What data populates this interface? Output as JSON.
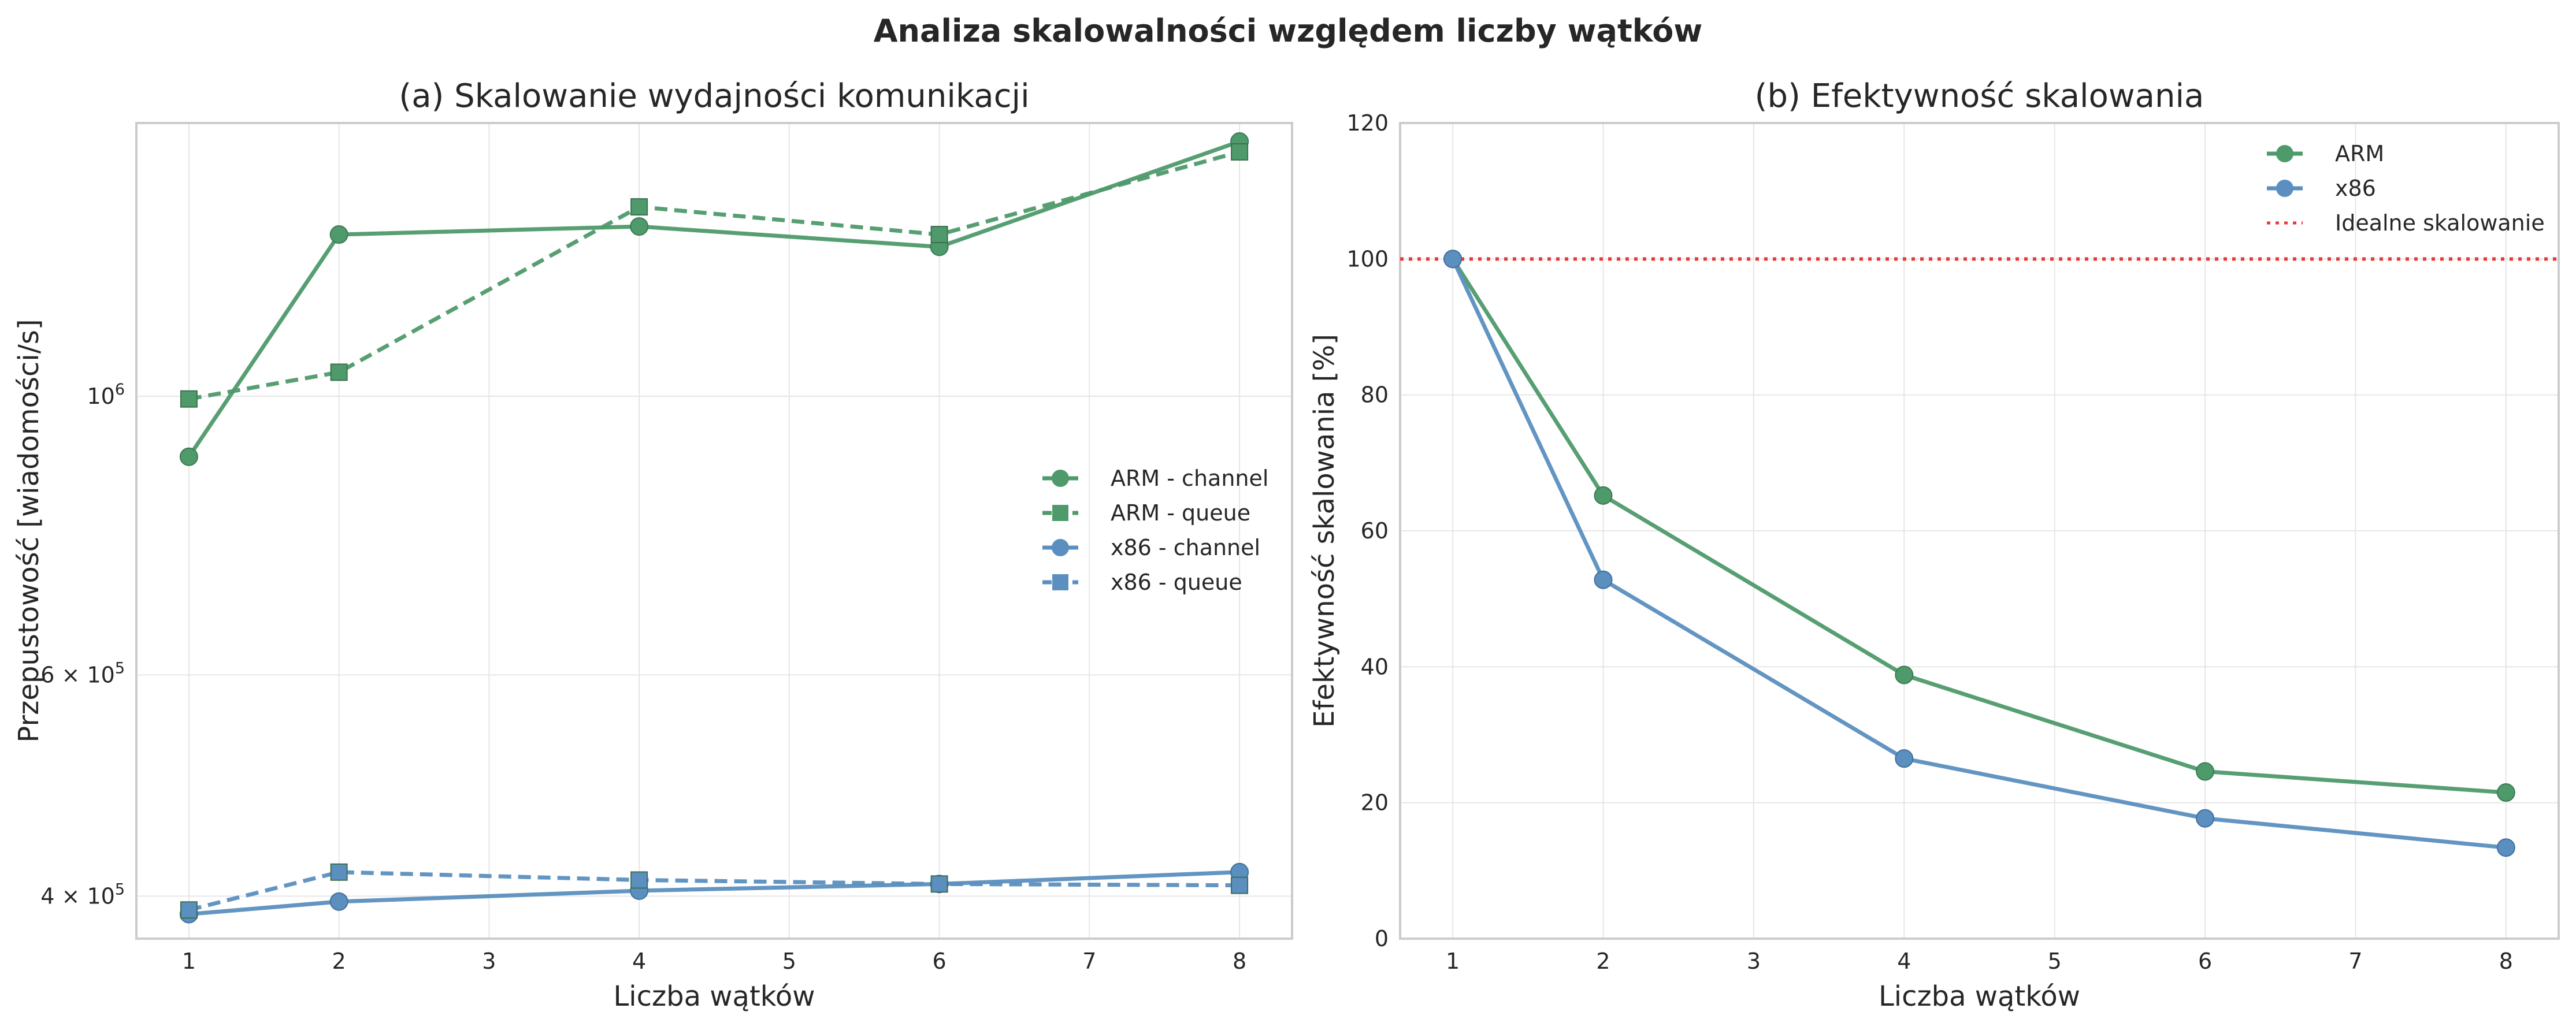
{
  "figure": {
    "title": "Analiza skalowalności względem liczby wątków"
  },
  "chart_data": [
    {
      "type": "line",
      "title": "(a) Skalowanie wydajności komunikacji",
      "xlabel": "Liczba wątków",
      "ylabel": "Przepustowość [wiadomości/s]",
      "yscale": "log",
      "xlim": [
        0.65,
        8.35
      ],
      "ylim": [
        370000,
        1650000
      ],
      "x_ticks": [
        1,
        2,
        3,
        4,
        5,
        6,
        7,
        8
      ],
      "y_ticks": [
        {
          "value": 400000,
          "label": "4 × 10",
          "exp": "5"
        },
        {
          "value": 600000,
          "label": "6 × 10",
          "exp": "5"
        },
        {
          "value": 1000000,
          "label": "10",
          "exp": "6"
        }
      ],
      "grid": true,
      "legend_position": "center-right",
      "x": [
        1,
        2,
        4,
        6,
        8
      ],
      "series": [
        {
          "name": "ARM - channel",
          "color": "#4e9a6b",
          "dash": "solid",
          "marker": "circle",
          "values": [
            895000,
            1345000,
            1365000,
            1315000,
            1595000
          ]
        },
        {
          "name": "ARM - queue",
          "color": "#4e9a6b",
          "dash": "dashed",
          "marker": "square",
          "values": [
            995000,
            1045000,
            1415000,
            1345000,
            1565000
          ]
        },
        {
          "name": "x86 - channel",
          "color": "#5b8fbf",
          "dash": "solid",
          "marker": "circle",
          "values": [
            387000,
            396000,
            404000,
            409000,
            418000
          ]
        },
        {
          "name": "x86 - queue",
          "color": "#5b8fbf",
          "dash": "dashed",
          "marker": "square",
          "values": [
            390000,
            418000,
            412000,
            409000,
            408000
          ]
        }
      ]
    },
    {
      "type": "line",
      "title": "(b) Efektywność skalowania",
      "xlabel": "Liczba wątków",
      "ylabel": "Efektywność skalowania [%]",
      "xlim": [
        0.65,
        8.35
      ],
      "ylim": [
        0,
        120
      ],
      "x_ticks": [
        1,
        2,
        3,
        4,
        5,
        6,
        7,
        8
      ],
      "y_ticks": [
        0,
        20,
        40,
        60,
        80,
        100,
        120
      ],
      "grid": true,
      "legend_position": "top-right",
      "x": [
        1,
        2,
        4,
        6,
        8
      ],
      "series": [
        {
          "name": "ARM",
          "color": "#4e9a6b",
          "dash": "solid",
          "marker": "circle",
          "values": [
            100,
            65.2,
            38.8,
            24.6,
            21.5
          ]
        },
        {
          "name": "x86",
          "color": "#5b8fbf",
          "dash": "solid",
          "marker": "circle",
          "values": [
            100,
            52.8,
            26.5,
            17.7,
            13.4
          ]
        }
      ],
      "reference_line": {
        "name": "Idealne skalowanie",
        "y": 100,
        "color": "#e83a3a",
        "dash": "dotted"
      }
    }
  ]
}
